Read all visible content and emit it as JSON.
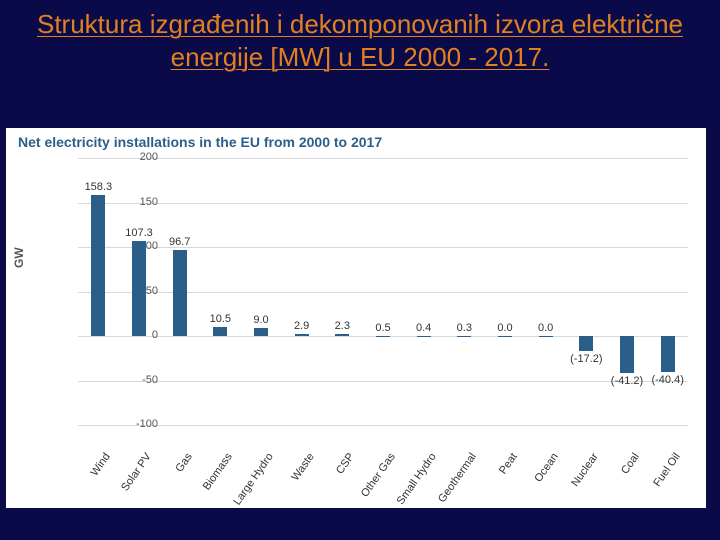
{
  "slide": {
    "title": "Struktura izgrađenih i dekomponovanih izvora električne energije [MW] u EU 2000 - 2017.",
    "bg_color": "#0a0a48",
    "title_color": "#e08020",
    "title_fontsize": 26
  },
  "chart": {
    "type": "bar",
    "title": "Net electricity installations in the EU from 2000 to 2017",
    "title_color": "#2b5f8a",
    "title_fontsize": 14,
    "ylabel": "GW",
    "label_fontsize": 12,
    "ylim": [
      -120,
      200
    ],
    "ytick_step": 50,
    "yticks": [
      -100,
      -50,
      0,
      50,
      100,
      150,
      200
    ],
    "background_color": "#ffffff",
    "grid_color": "#d9d9d9",
    "bar_color": "#2b5f8a",
    "bar_width": 0.35,
    "categories": [
      "Wind",
      "Solar PV",
      "Gas",
      "Biomass",
      "Large Hydro",
      "Waste",
      "CSP",
      "Other Gas",
      "Small Hydro",
      "Geothermal",
      "Peat",
      "Ocean",
      "Nuclear",
      "Coal",
      "Fuel Oil"
    ],
    "values": [
      158.3,
      107.3,
      96.7,
      10.5,
      9.0,
      2.9,
      2.3,
      0.5,
      0.4,
      0.3,
      0.0,
      0.0,
      -17.2,
      -41.2,
      -40.4
    ],
    "value_labels": [
      "158.3",
      "107.3",
      "96.7",
      "10.5",
      "9.0",
      "2.9",
      "2.3",
      "0.5",
      "0.4",
      "0.3",
      "0.0",
      "0.0",
      "(-17.2)",
      "(-41.2)",
      "(-40.4)"
    ]
  }
}
